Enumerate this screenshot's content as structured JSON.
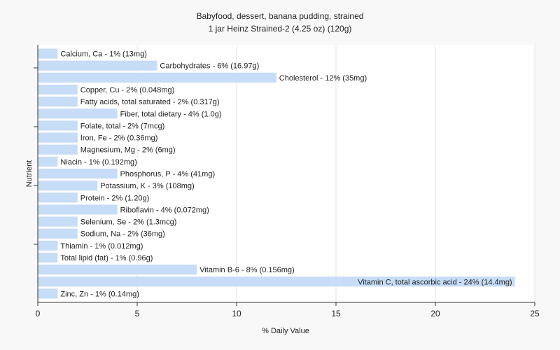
{
  "chart_data": {
    "type": "bar",
    "orientation": "horizontal",
    "title": "Babyfood, dessert, banana pudding, strained",
    "subtitle": "1 jar Heinz Strained-2 (4.25 oz) (120g)",
    "xlabel": "% Daily Value",
    "ylabel": "Nutrient",
    "xlim": [
      0,
      25
    ],
    "xticks": [
      "0",
      "5",
      "10",
      "15",
      "20",
      "25"
    ],
    "grid": true,
    "bar_color": "#c6dcf7",
    "categories": [
      "Calcium, Ca",
      "Carbohydrates",
      "Cholesterol",
      "Copper, Cu",
      "Fatty acids, total saturated",
      "Fiber, total dietary",
      "Folate, total",
      "Iron, Fe",
      "Magnesium, Mg",
      "Niacin",
      "Phosphorus, P",
      "Potassium, K",
      "Protein",
      "Riboflavin",
      "Selenium, Se",
      "Sodium, Na",
      "Thiamin",
      "Total lipid (fat)",
      "Vitamin B-6",
      "Vitamin C, total ascorbic acid",
      "Zinc, Zn"
    ],
    "values": [
      1,
      6,
      12,
      2,
      2,
      4,
      2,
      2,
      2,
      1,
      4,
      3,
      2,
      4,
      2,
      2,
      1,
      1,
      8,
      24,
      1
    ],
    "labels": [
      "Calcium, Ca - 1% (13mg)",
      "Carbohydrates - 6% (16.97g)",
      "Cholesterol - 12% (35mg)",
      "Copper, Cu - 2% (0.048mg)",
      "Fatty acids, total saturated - 2% (0.317g)",
      "Fiber, total dietary - 4% (1.0g)",
      "Folate, total - 2% (7mcg)",
      "Iron, Fe - 2% (0.36mg)",
      "Magnesium, Mg - 2% (6mg)",
      "Niacin - 1% (0.192mg)",
      "Phosphorus, P - 4% (41mg)",
      "Potassium, K - 3% (108mg)",
      "Protein - 2% (1.20g)",
      "Riboflavin - 4% (0.072mg)",
      "Selenium, Se - 2% (1.3mcg)",
      "Sodium, Na - 2% (36mg)",
      "Thiamin - 1% (0.012mg)",
      "Total lipid (fat) - 1% (0.96g)",
      "Vitamin B-6 - 8% (0.156mg)",
      "Vitamin C, total ascorbic acid - 24% (14.4mg)",
      "Zinc, Zn - 1% (0.14mg)"
    ]
  }
}
